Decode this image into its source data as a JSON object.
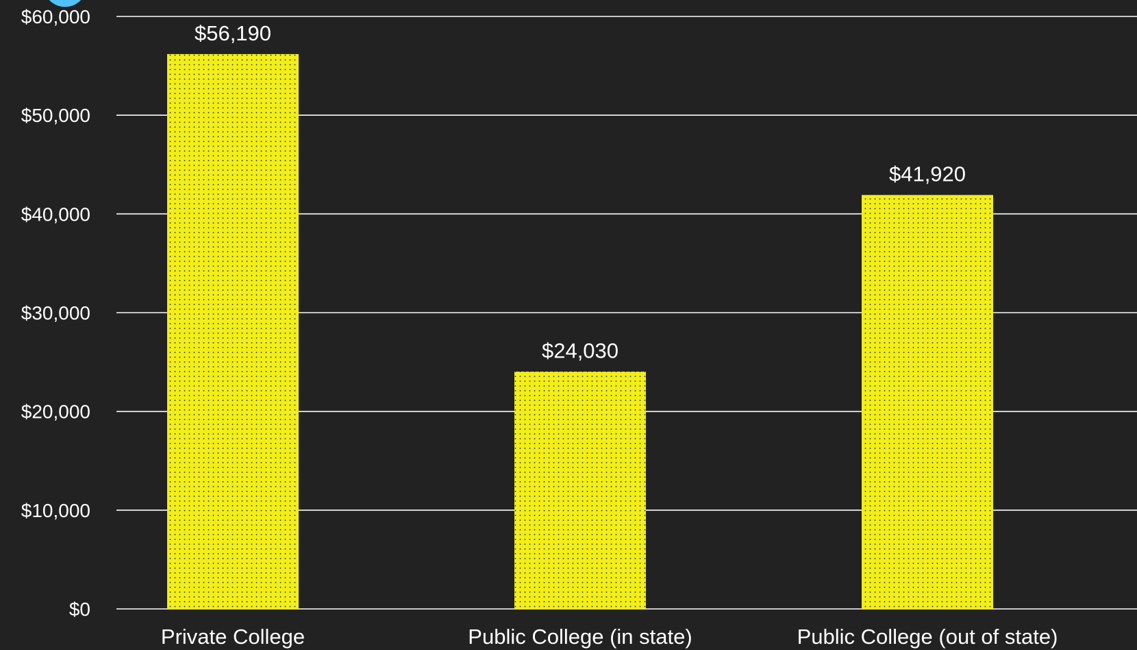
{
  "colors": {
    "background": "#222222",
    "bar_fill": "#f2ee1a",
    "bar_dot": "#222222",
    "gridline": "#ffffff",
    "text": "#ffffff",
    "corner_mark": "#4fc3f7"
  },
  "chart_data": {
    "type": "bar",
    "title": "",
    "xlabel": "",
    "ylabel": "",
    "categories": [
      "Private College",
      "Public College (in state)",
      "Public College (out of state)"
    ],
    "values": [
      56190,
      24030,
      41920
    ],
    "data_labels": [
      "$56,190",
      "$24,030",
      "$41,920"
    ],
    "ylim": [
      0,
      60000
    ],
    "yticks": [
      0,
      10000,
      20000,
      30000,
      40000,
      50000,
      60000
    ],
    "ytick_labels": [
      "$0",
      "$10,000",
      "$20,000",
      "$30,000",
      "$40,000",
      "$50,000",
      "$60,000"
    ],
    "grid": true,
    "legend": "none",
    "bar_pattern": "dotted"
  }
}
